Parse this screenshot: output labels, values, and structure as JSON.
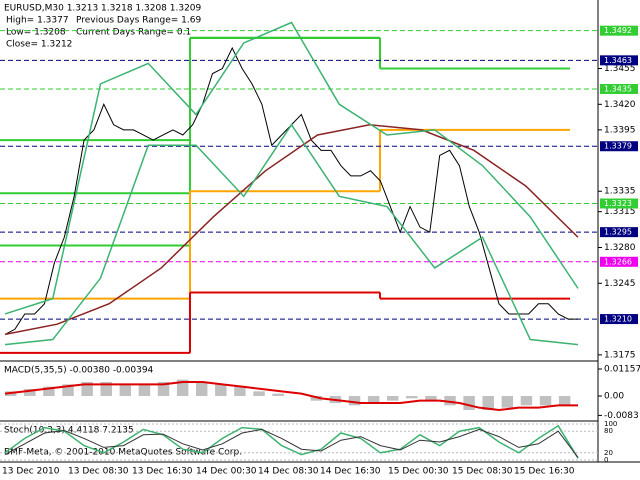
{
  "chart_data": {
    "type": "line",
    "header": {
      "symbol": "EURUSD,M30  1.3213 1.3218 1.3208 1.3209",
      "high": "High= 1.3377",
      "prev_range": "Previous Days Range= 1.69",
      "low": "Low= 1.3208",
      "cur_range": "Current Days Range= 0.1",
      "close": "Close= 1.3212"
    },
    "copyright": "BMF-Meta, © 2001-2010 MetaQuotes Software Corp.",
    "time_labels": [
      "13 Dec 2010",
      "13 Dec 08:30",
      "13 Dec 16:30",
      "14 Dec 00:30",
      "14 Dec 08:30",
      "14 Dec 16:30",
      "15 Dec 00:30",
      "15 Dec 08:30",
      "15 Dec 16:30"
    ],
    "ylim": [
      1.3169,
      1.3522
    ],
    "yticks": [
      {
        "value": 1.3455,
        "label": "1.3455"
      },
      {
        "value": 1.342,
        "label": "1.3420"
      },
      {
        "value": 1.3395,
        "label": "1.3395"
      },
      {
        "value": 1.3335,
        "label": "1.3335"
      },
      {
        "value": 1.3315,
        "label": "1.3315"
      },
      {
        "value": 1.328,
        "label": "1.3280"
      },
      {
        "value": 1.3245,
        "label": "1.3245"
      },
      {
        "value": 1.3175,
        "label": "1.3175"
      }
    ],
    "marked_levels": [
      {
        "value": 1.3492,
        "label": "1.3492",
        "color": "#32cd32"
      },
      {
        "value": 1.3463,
        "label": "1.3463",
        "color": "#000080"
      },
      {
        "value": 1.3435,
        "label": "1.3435",
        "color": "#32cd32"
      },
      {
        "value": 1.3379,
        "label": "1.3379",
        "color": "#000080"
      },
      {
        "value": 1.3323,
        "label": "1.3323",
        "color": "#32cd32"
      },
      {
        "value": 1.3295,
        "label": "1.3295",
        "color": "#000080"
      },
      {
        "value": 1.3266,
        "label": "1.3266",
        "color": "#ee00ee"
      },
      {
        "value": 1.321,
        "label": "1.3210",
        "color": "#000080"
      }
    ],
    "day_levels": [
      {
        "color": "#32cd32",
        "values": [
          1.3385,
          1.3485,
          1.3455
        ]
      },
      {
        "color": "#32cd32",
        "values": [
          1.3333,
          1.3485,
          1.3455
        ]
      },
      {
        "color": "#32cd32",
        "values": [
          1.3282,
          1.3485,
          1.3455
        ]
      },
      {
        "color": "#ffa500",
        "values": [
          1.323,
          1.3335,
          1.3395
        ]
      },
      {
        "color": "#dd0000",
        "values": [
          1.3177,
          1.3236,
          1.323
        ]
      }
    ],
    "series": [
      {
        "color": "#000000",
        "values": [
          1.3195,
          1.32,
          1.3215,
          1.3215,
          1.3225,
          1.3265,
          1.329,
          1.333,
          1.3385,
          1.3395,
          1.342,
          1.34,
          1.3395,
          1.3395,
          1.339,
          1.3385,
          1.339,
          1.3395,
          1.339,
          1.34,
          1.342,
          1.345,
          1.3455,
          1.3475,
          1.3455,
          1.344,
          1.342,
          1.338,
          1.339,
          1.34,
          1.341,
          1.3385,
          1.3375,
          1.3375,
          1.336,
          1.335,
          1.335,
          1.3355,
          1.3345,
          1.332,
          1.3295,
          1.332,
          1.33,
          1.3295,
          1.337,
          1.3375,
          1.336,
          1.332,
          1.3295,
          1.326,
          1.3225,
          1.3215,
          1.3215,
          1.3215,
          1.3225,
          1.3225,
          1.3215,
          1.321,
          1.321
        ]
      },
      {
        "color": "#8b2323",
        "values": [
          1.3195,
          1.3205,
          1.3225,
          1.326,
          1.331,
          1.3355,
          1.339,
          1.34,
          1.3395,
          1.3375,
          1.334,
          1.329
        ]
      },
      {
        "color": "#3cb371",
        "values": [
          1.3215,
          1.323,
          1.344,
          1.346,
          1.341,
          1.348,
          1.35,
          1.342,
          1.339,
          1.3395,
          1.336,
          1.331,
          1.324
        ]
      },
      {
        "color": "#3cb371",
        "values": [
          1.3185,
          1.319,
          1.325,
          1.338,
          1.338,
          1.333,
          1.34,
          1.333,
          1.332,
          1.326,
          1.329,
          1.319,
          1.3185
        ]
      }
    ],
    "macd": {
      "label": "MACD(5,35,5) -0.00380 -0.00394",
      "ylim": [
        -0.01028,
        0.01457
      ],
      "yticks": [
        0.01157,
        {
          "value": 0,
          "label": "0.00"
        },
        -0.0083
      ],
      "color": "#c0c0c0",
      "values": [
        0.002,
        0.003,
        0.004,
        0.005,
        0.006,
        0.006,
        0.005,
        0.005,
        0.006,
        0.007,
        0.006,
        0.005,
        0.004,
        0.002,
        0.001,
        0,
        -0.002,
        -0.003,
        -0.004,
        -0.003,
        -0.002,
        -0.001,
        -0.002,
        -0.004,
        -0.006,
        -0.006,
        -0.005,
        -0.004,
        -0.004,
        -0.004
      ],
      "signal": {
        "color": "#dd0000",
        "values": [
          0.001,
          0.002,
          0.003,
          0.004,
          0.005,
          0.005,
          0.005,
          0.005,
          0.005,
          0.006,
          0.006,
          0.005,
          0.004,
          0.003,
          0.002,
          0.001,
          -0.001,
          -0.002,
          -0.003,
          -0.003,
          -0.003,
          -0.002,
          -0.002,
          -0.003,
          -0.005,
          -0.006,
          -0.005,
          -0.005,
          -0.004,
          -0.004
        ]
      }
    },
    "stoch": {
      "label": "Stoch(10,3,3) 4.4118 7.2135",
      "ylim": [
        0,
        100
      ],
      "yticks": [
        100,
        80,
        20,
        0
      ],
      "main": {
        "color": "#3cb371",
        "values": [
          20,
          60,
          90,
          80,
          40,
          20,
          50,
          85,
          70,
          30,
          20,
          60,
          90,
          85,
          40,
          15,
          30,
          75,
          60,
          20,
          30,
          70,
          40,
          80,
          90,
          50,
          20,
          60,
          95,
          5
        ]
      },
      "signal": {
        "color": "#333333",
        "values": [
          15,
          45,
          75,
          82,
          60,
          35,
          40,
          70,
          72,
          45,
          28,
          45,
          75,
          85,
          60,
          30,
          25,
          55,
          65,
          40,
          28,
          55,
          50,
          65,
          85,
          65,
          35,
          45,
          80,
          7
        ]
      }
    }
  }
}
